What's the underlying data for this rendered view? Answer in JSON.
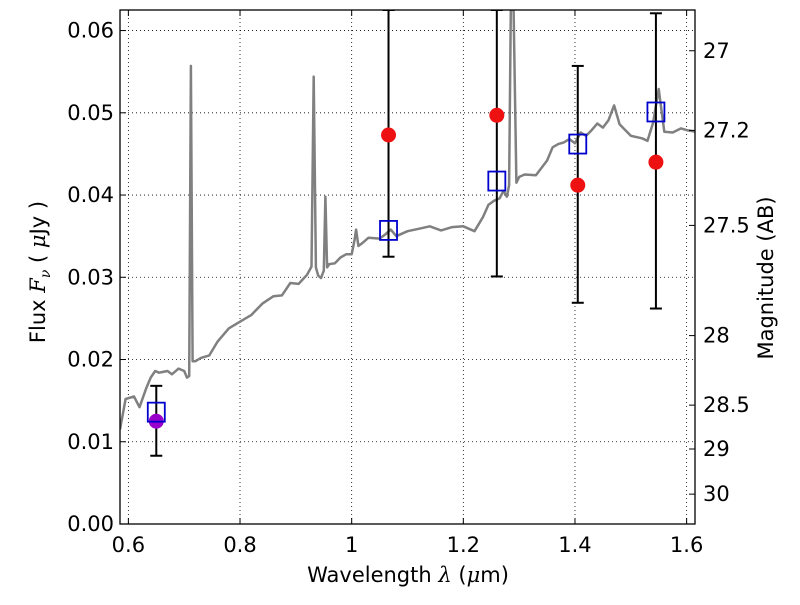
{
  "chart_data": {
    "type": "scatter",
    "xlabel_prefix": "Wavelength",
    "xlabel_symbol": "λ",
    "xlabel_unit_open": "(",
    "xlabel_unit_mu": "μ",
    "xlabel_unit_close": "m)",
    "ylabel_prefix": "Flux",
    "ylabel_symbol": "F",
    "ylabel_subscript": "ν",
    "ylabel_unit_open": "(",
    "ylabel_unit_mu": "μ",
    "ylabel_unit_close": "Jy )",
    "y2label": "Magnitude (AB)",
    "xlim": [
      0.585,
      1.615
    ],
    "ylim": [
      0.0,
      0.0625
    ],
    "grid": true,
    "x_ticks": [
      {
        "value": 0.6,
        "label": "0.6"
      },
      {
        "value": 0.8,
        "label": "0.8"
      },
      {
        "value": 1.0,
        "label": "1"
      },
      {
        "value": 1.2,
        "label": "1.2"
      },
      {
        "value": 1.4,
        "label": "1.4"
      },
      {
        "value": 1.6,
        "label": "1.6"
      }
    ],
    "y_ticks": [
      {
        "value": 0.0,
        "label": "0.00"
      },
      {
        "value": 0.01,
        "label": "0.01"
      },
      {
        "value": 0.02,
        "label": "0.02"
      },
      {
        "value": 0.03,
        "label": "0.03"
      },
      {
        "value": 0.04,
        "label": "0.04"
      },
      {
        "value": 0.05,
        "label": "0.05"
      },
      {
        "value": 0.06,
        "label": "0.06"
      }
    ],
    "y2_ticks": [
      {
        "mag": 27.0,
        "label": "27"
      },
      {
        "mag": 27.2,
        "label": "27.2"
      },
      {
        "mag": 27.5,
        "label": "27.5"
      },
      {
        "mag": 28.0,
        "label": "28"
      },
      {
        "mag": 28.5,
        "label": "28.5"
      },
      {
        "mag": 29.0,
        "label": "29"
      },
      {
        "mag": 30.0,
        "label": "30"
      }
    ],
    "template_spectrum": {
      "color": "#808080",
      "x": [
        0.585,
        0.595,
        0.61,
        0.62,
        0.632,
        0.64,
        0.648,
        0.655,
        0.662,
        0.67,
        0.678,
        0.69,
        0.7,
        0.705,
        0.709,
        0.712,
        0.715,
        0.72,
        0.73,
        0.745,
        0.76,
        0.78,
        0.8,
        0.82,
        0.84,
        0.86,
        0.875,
        0.89,
        0.905,
        0.92,
        0.928,
        0.932,
        0.936,
        0.94,
        0.945,
        0.95,
        0.953,
        0.956,
        0.96,
        0.97,
        0.98,
        0.99,
        1.0,
        1.005,
        1.008,
        1.012,
        1.02,
        1.03,
        1.05,
        1.06,
        1.07,
        1.08,
        1.1,
        1.12,
        1.14,
        1.16,
        1.18,
        1.2,
        1.22,
        1.235,
        1.245,
        1.255,
        1.265,
        1.272,
        1.278,
        1.282,
        1.285,
        1.29,
        1.295,
        1.3,
        1.31,
        1.33,
        1.35,
        1.36,
        1.37,
        1.38,
        1.39,
        1.4,
        1.41,
        1.42,
        1.43,
        1.44,
        1.45,
        1.46,
        1.47,
        1.48,
        1.5,
        1.52,
        1.53,
        1.54,
        1.55,
        1.56,
        1.575,
        1.59,
        1.6,
        1.615
      ],
      "y": [
        0.0115,
        0.0152,
        0.0155,
        0.0142,
        0.0165,
        0.0178,
        0.0186,
        0.0184,
        0.0185,
        0.0186,
        0.0182,
        0.0189,
        0.0186,
        0.0178,
        0.018,
        0.0557,
        0.0198,
        0.0198,
        0.0202,
        0.0205,
        0.0222,
        0.0238,
        0.0246,
        0.0254,
        0.0268,
        0.0277,
        0.0278,
        0.0293,
        0.0292,
        0.0303,
        0.0313,
        0.0544,
        0.0312,
        0.0302,
        0.0299,
        0.0308,
        0.0398,
        0.0312,
        0.0316,
        0.0317,
        0.0324,
        0.0328,
        0.0328,
        0.0345,
        0.0358,
        0.0338,
        0.0342,
        0.0348,
        0.0347,
        0.0352,
        0.0358,
        0.035,
        0.0356,
        0.0359,
        0.0362,
        0.0357,
        0.0361,
        0.0362,
        0.0356,
        0.0373,
        0.0388,
        0.0393,
        0.0396,
        0.0405,
        0.0398,
        0.0412,
        0.0625,
        0.0625,
        0.0415,
        0.0422,
        0.0425,
        0.0424,
        0.0442,
        0.0458,
        0.0462,
        0.0464,
        0.0468,
        0.0463,
        0.0476,
        0.0472,
        0.0479,
        0.0487,
        0.0482,
        0.0491,
        0.0509,
        0.0486,
        0.0472,
        0.0469,
        0.0466,
        0.0488,
        0.0529,
        0.0477,
        0.0476,
        0.0481,
        0.0479,
        0.0477
      ]
    },
    "model_photometry": {
      "color": "#0000cc",
      "marker": "open-square",
      "x": [
        0.65,
        1.066,
        1.26,
        1.405,
        1.545
      ],
      "y": [
        0.0136,
        0.0357,
        0.0417,
        0.0462,
        0.0501
      ]
    },
    "observed": {
      "color": "#ee1111",
      "marker": "filled-circle",
      "x": [
        1.066,
        1.26,
        1.405,
        1.545
      ],
      "y": [
        0.0473,
        0.0497,
        0.0412,
        0.044
      ],
      "yerr_low": [
        0.0325,
        0.0301,
        0.0269,
        0.0262
      ],
      "yerr_high": [
        0.0625,
        0.0625,
        0.0557,
        0.0621
      ]
    },
    "optical_point": {
      "color": "#9900cc",
      "marker": "filled-circle",
      "x": 0.65,
      "y": 0.0125,
      "yerr_low": 0.0083,
      "yerr_high": 0.0168
    },
    "magnitude_zero_point": 23.9
  }
}
